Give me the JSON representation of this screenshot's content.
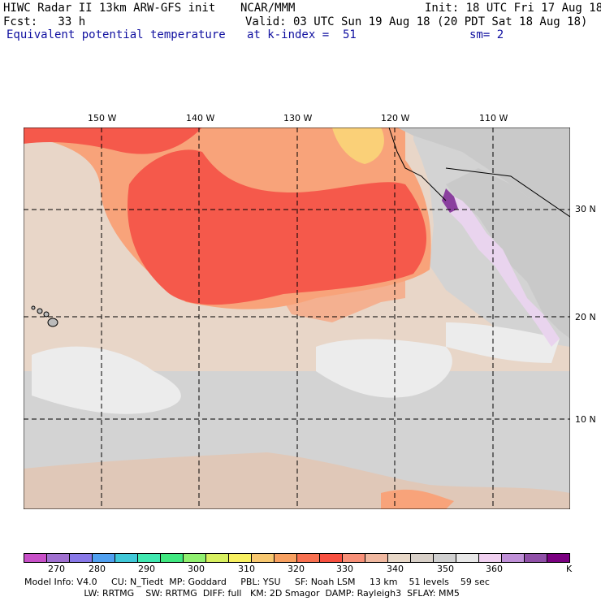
{
  "header": {
    "line1_left": "HIWC Radar II 13km ARW-GFS init",
    "line1_mid": "NCAR/MMM",
    "line1_right": "Init: 18 UTC Fri 17 Aug 18",
    "line2_left": "Fcst:   33 h",
    "line2_right": "Valid: 03 UTC Sun 19 Aug 18 (20 PDT Sat 18 Aug 18)",
    "line3_left": "Equivalent potential temperature",
    "line3_mid": "at k-index =  51",
    "line3_right": "sm= 2"
  },
  "lon_labels": [
    "150 W",
    "140 W",
    "130 W",
    "120 W",
    "110 W"
  ],
  "lat_labels": [
    "30 N",
    "20 N",
    "10 N"
  ],
  "colorbar": {
    "colors": [
      "#c850c8",
      "#a070d0",
      "#8878e8",
      "#50a0f0",
      "#40c8d8",
      "#40e8b0",
      "#40e880",
      "#90f070",
      "#d8f060",
      "#f8f060",
      "#f8c870",
      "#f8a060",
      "#f87050",
      "#f85040",
      "#f89078",
      "#f0b8a0",
      "#e8d8c8",
      "#d8d0c8",
      "#d0d0d0",
      "#e8e8e8",
      "#f0d0f0",
      "#c090d8",
      "#9050a8",
      "#7a0080"
    ],
    "labels": [
      "270",
      "280",
      "290",
      "300",
      "310",
      "320",
      "330",
      "340",
      "350",
      "360"
    ],
    "unit": "K"
  },
  "footer": {
    "line1": "Model Info: V4.0     CU: N_Tiedt  MP: Goddard     PBL: YSU     SF: Noah LSM     13 km    51 levels    59 sec",
    "line2": "                     LW: RRTMG    SW: RRTMG  DIFF: full   KM: 2D Smagor  DAMP: Rayleigh3  SFLAY: MM5"
  }
}
